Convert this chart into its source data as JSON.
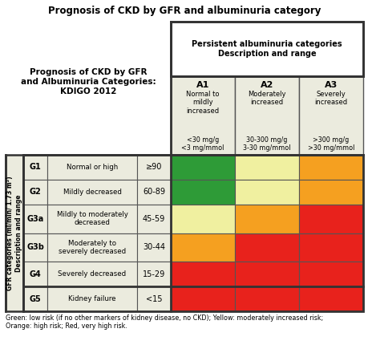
{
  "title": "Prognosis of CKD by GFR and albuminuria category",
  "left_header_title": "Prognosis of CKD by GFR\nand Albuminuria Categories:\nKDIGO 2012",
  "top_header_title": "Persistent albuminuria categories\nDescription and range",
  "col_headers": [
    "A1",
    "A2",
    "A3"
  ],
  "col_sub1": [
    "Normal to\nmildly\nincreased",
    "Moderately\nincreased",
    "Severely\nincreased"
  ],
  "col_sub2": [
    "<30 mg/g\n<3 mg/mmol",
    "30-300 mg/g\n3-30 mg/mmol",
    ">300 mg/g\n>30 mg/mmol"
  ],
  "row_labels": [
    "G1",
    "G2",
    "G3a",
    "G3b",
    "G4",
    "G5"
  ],
  "row_descriptions": [
    "Normal or high",
    "Mildly decreased",
    "Mildly to moderately\ndecreased",
    "Moderately to\nseverely decreased",
    "Severely decreased",
    "Kidney failure"
  ],
  "row_ranges": [
    "≥90",
    "60-89",
    "45-59",
    "30-44",
    "15-29",
    "<15"
  ],
  "y_axis_label": "GFR categories (ml/min/ 1.73 m²)\nDescription and range",
  "grid_colors": [
    [
      "#2e9b37",
      "#f0f0a0",
      "#f5a020"
    ],
    [
      "#2e9b37",
      "#f0f0a0",
      "#f5a020"
    ],
    [
      "#f0f0a0",
      "#f5a020",
      "#e8221c"
    ],
    [
      "#f5a020",
      "#e8221c",
      "#e8221c"
    ],
    [
      "#e8221c",
      "#e8221c",
      "#e8221c"
    ],
    [
      "#e8221c",
      "#e8221c",
      "#e8221c"
    ]
  ],
  "footnote": "Green: low risk (if no other markers of kidney disease, no CKD); Yellow: moderately increased risk;\nOrange: high risk; Red, very high risk.",
  "border_color": "#555555",
  "thick_border": "#333333",
  "header_bg": "#ebebde",
  "top_header_bg": "#ffffff",
  "background_color": "#ffffff"
}
